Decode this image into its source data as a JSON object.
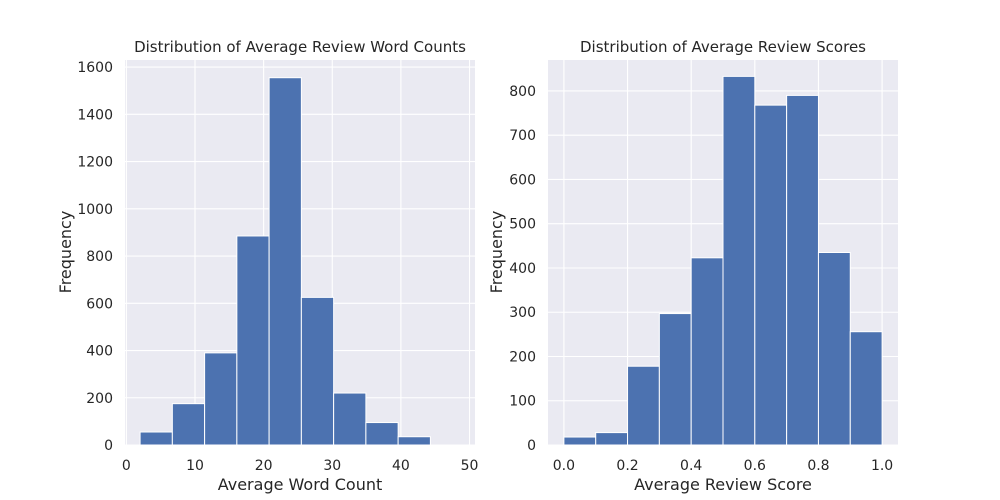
{
  "chart_data": [
    {
      "type": "bar",
      "title": "Distribution of Average Review Word Counts",
      "xlabel": "Average Word Count",
      "ylabel": "Frequency",
      "xlim": [
        -0.2,
        50.8
      ],
      "ylim": [
        0,
        1630
      ],
      "xticks": [
        0,
        10,
        20,
        30,
        40,
        50
      ],
      "yticks": [
        0,
        200,
        400,
        600,
        800,
        1000,
        1200,
        1400,
        1600
      ],
      "bin_edges": [
        2.0,
        6.7,
        11.4,
        16.1,
        20.8,
        25.5,
        30.2,
        34.9,
        39.6,
        44.3,
        49.0
      ],
      "values": [
        55,
        175,
        390,
        885,
        1555,
        625,
        220,
        95,
        35,
        0
      ],
      "grid": true,
      "legend": "none"
    },
    {
      "type": "bar",
      "title": "Distribution of Average Review Scores",
      "xlabel": "Average Review Score",
      "ylabel": "Frequency",
      "xlim": [
        -0.05,
        1.05
      ],
      "ylim": [
        0,
        870
      ],
      "xticks": [
        0.0,
        0.2,
        0.4,
        0.6,
        0.8,
        1.0
      ],
      "yticks": [
        0,
        100,
        200,
        300,
        400,
        500,
        600,
        700,
        800
      ],
      "bin_edges": [
        0.0,
        0.1,
        0.2,
        0.3,
        0.4,
        0.5,
        0.6,
        0.7,
        0.8,
        0.9,
        1.0
      ],
      "values": [
        18,
        28,
        178,
        297,
        423,
        833,
        768,
        790,
        435,
        256
      ],
      "grid": true,
      "legend": "none"
    }
  ]
}
